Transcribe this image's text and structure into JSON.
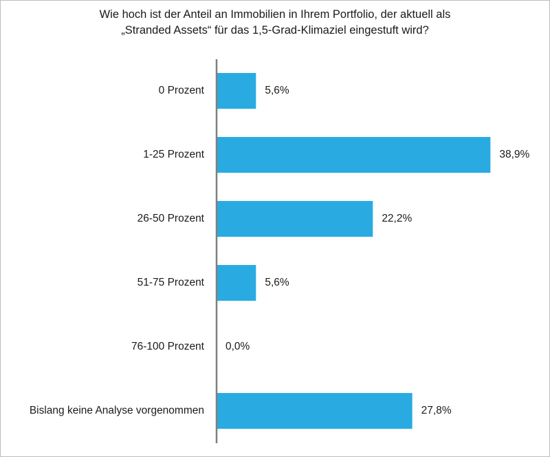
{
  "chart_data": {
    "type": "bar",
    "orientation": "horizontal",
    "title": [
      "Wie hoch ist der Anteil an Immobilien in Ihrem Portfolio, der aktuell als",
      "„Stranded Assets“ für das 1,5-Grad-Klimaziel eingestuft wird?"
    ],
    "categories": [
      "0 Prozent",
      "1-25 Prozent",
      "26-50 Prozent",
      "51-75 Prozent",
      "76-100 Prozent",
      "Bislang keine Analyse vorgenommen"
    ],
    "values": [
      5.6,
      38.9,
      22.2,
      5.6,
      0.0,
      27.8
    ],
    "data_labels": [
      "5,6%",
      "38,9%",
      "22,2%",
      "5,6%",
      "0,0%",
      "27,8%"
    ],
    "bar_color": "#29abe2",
    "axis_color": "#7f7f7f",
    "grid": false,
    "legend": "none"
  }
}
